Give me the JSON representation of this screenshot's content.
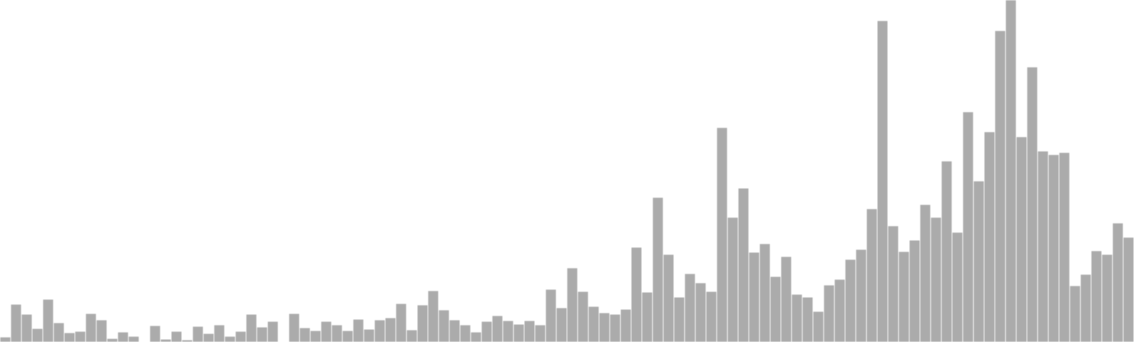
{
  "chart_data": {
    "type": "bar",
    "title": "",
    "xlabel": "",
    "ylabel": "",
    "ylim": [
      0,
      480
    ],
    "grid": false,
    "legend": "none",
    "bar_color": "#ababab",
    "bar_edge_color": "#ffffff",
    "background": "#ffffff",
    "values": [
      7,
      53,
      39,
      19,
      60,
      27,
      13,
      15,
      40,
      31,
      5,
      14,
      8,
      0,
      23,
      4,
      15,
      3,
      22,
      12,
      24,
      8,
      15,
      39,
      21,
      29,
      0,
      40,
      20,
      16,
      29,
      24,
      16,
      32,
      18,
      31,
      34,
      54,
      17,
      52,
      72,
      45,
      31,
      24,
      14,
      29,
      37,
      30,
      25,
      30,
      24,
      74,
      48,
      104,
      71,
      50,
      41,
      39,
      46,
      133,
      70,
      203,
      123,
      63,
      96,
      83,
      71,
      301,
      175,
      216,
      126,
      138,
      92,
      120,
      67,
      63,
      43,
      80,
      88,
      116,
      130,
      187,
      451,
      163,
      127,
      143,
      193,
      175,
      254,
      154,
      323,
      226,
      295,
      437,
      480,
      288,
      386,
      268,
      263,
      266,
      79,
      95,
      128,
      123,
      167,
      147
    ]
  }
}
